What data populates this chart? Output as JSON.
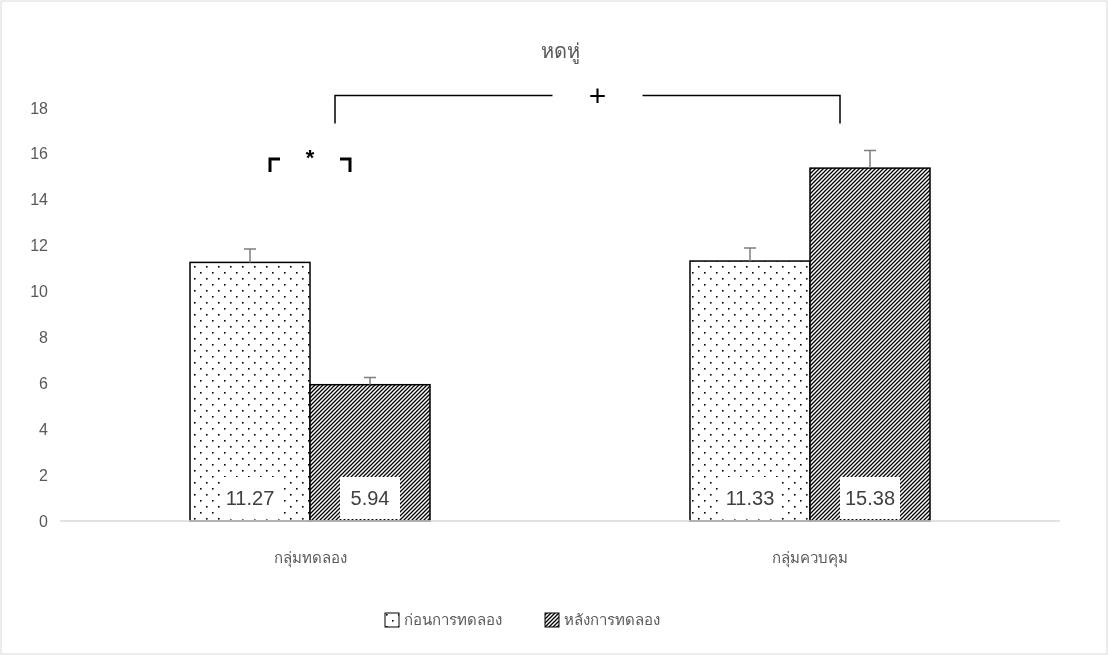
{
  "chart_data": {
    "type": "bar",
    "title": "หดหู่",
    "categories": [
      "กลุ่มทดลอง",
      "กลุ่มควบคุม"
    ],
    "series": [
      {
        "name": "ก่อนการทดลอง",
        "color": "#000000",
        "values": [
          11.27,
          11.33
        ],
        "errors": [
          [
            11.27,
            11.85
          ],
          [
            11.33,
            11.9
          ]
        ]
      },
      {
        "name": "หลังการทดลอง",
        "color": "#000000",
        "values": [
          5.94,
          15.38
        ],
        "errors": [
          [
            5.94,
            6.25
          ],
          [
            15.38,
            16.15
          ]
        ]
      }
    ],
    "ylim": [
      0,
      18
    ],
    "yticks": [
      0,
      2,
      4,
      6,
      8,
      10,
      12,
      14,
      16,
      18
    ],
    "data_labels": true,
    "legend": "bottom",
    "grid": false,
    "annotations": [
      "*",
      "+"
    ]
  }
}
